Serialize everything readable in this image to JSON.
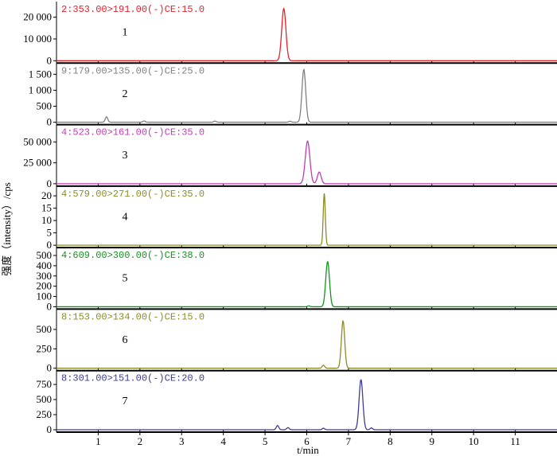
{
  "chart_data": {
    "type": "line",
    "xlabel": "t/min",
    "ylabel": "强度（intensity）/cps",
    "xlim": [
      0,
      12
    ],
    "x_ticks": [
      1,
      2,
      3,
      4,
      5,
      6,
      7,
      8,
      9,
      10,
      11
    ],
    "panels": [
      {
        "number": "1",
        "label": "2:353.00>191.00(-)CE:15.0",
        "color": "#e8202a",
        "ylim": [
          0,
          25000
        ],
        "y_ticks": [
          0,
          10000,
          20000
        ],
        "y_tick_labels": [
          "0",
          "10 000",
          "20 000"
        ],
        "peaks": [
          {
            "rt": 5.45,
            "height": 24000,
            "width": 0.05
          }
        ],
        "noise": []
      },
      {
        "number": "2",
        "label": "9:179.00>135.00(-)CE:25.0",
        "color": "#808080",
        "ylim": [
          0,
          1700
        ],
        "y_ticks": [
          0,
          500,
          1000,
          1500
        ],
        "y_tick_labels": [
          "0",
          "500",
          "1 000",
          "1 500"
        ],
        "peaks": [
          {
            "rt": 5.93,
            "height": 1650,
            "width": 0.045
          }
        ],
        "noise": [
          {
            "rt": 1.2,
            "height": 170
          },
          {
            "rt": 2.1,
            "height": 40
          },
          {
            "rt": 3.8,
            "height": 35
          },
          {
            "rt": 5.6,
            "height": 30
          }
        ]
      },
      {
        "number": "3",
        "label": "4:523.00>161.00(-)CE:35.0",
        "color": "#c03cb4",
        "ylim": [
          0,
          65000
        ],
        "y_ticks": [
          0,
          25000,
          50000
        ],
        "y_tick_labels": [
          "0",
          "25 000",
          "50 000"
        ],
        "peaks": [
          {
            "rt": 6.02,
            "height": 51000,
            "width": 0.055
          },
          {
            "rt": 6.3,
            "height": 14000,
            "width": 0.045
          }
        ],
        "noise": []
      },
      {
        "number": "4",
        "label": "4:579.00>271.00(-)CE:35.0",
        "color": "#8c8c28",
        "ylim": [
          0,
          22
        ],
        "y_ticks": [
          0,
          5,
          10,
          15,
          20
        ],
        "y_tick_labels": [
          "0",
          "5",
          "10",
          "15",
          "20"
        ],
        "peaks": [
          {
            "rt": 6.42,
            "height": 21,
            "width": 0.025
          }
        ],
        "noise": []
      },
      {
        "number": "5",
        "label": "4:609.00>300.00(-)CE:38.0",
        "color": "#12941e",
        "ylim": [
          0,
          530
        ],
        "y_ticks": [
          0,
          100,
          200,
          300,
          400,
          500
        ],
        "y_tick_labels": [
          "0",
          "100",
          "200",
          "300",
          "400",
          "500"
        ],
        "peaks": [
          {
            "rt": 6.5,
            "height": 440,
            "width": 0.045
          }
        ],
        "noise": [
          {
            "rt": 6.05,
            "height": 8
          }
        ]
      },
      {
        "number": "6",
        "label": "8:153.00>134.00(-)CE:15.0",
        "color": "#8c8c28",
        "ylim": [
          0,
          700
        ],
        "y_ticks": [
          0,
          250,
          500
        ],
        "y_tick_labels": [
          "0",
          "250",
          "500"
        ],
        "peaks": [
          {
            "rt": 6.87,
            "height": 610,
            "width": 0.04
          }
        ],
        "noise": [
          {
            "rt": 6.4,
            "height": 40
          }
        ]
      },
      {
        "number": "7",
        "label": "8:301.00>151.00(-)CE:20.0",
        "color": "#3c3c96",
        "ylim": [
          0,
          900
        ],
        "y_ticks": [
          0,
          250,
          500,
          750
        ],
        "y_tick_labels": [
          "0",
          "250",
          "500",
          "750"
        ],
        "peaks": [
          {
            "rt": 7.3,
            "height": 830,
            "width": 0.045
          }
        ],
        "noise": [
          {
            "rt": 5.3,
            "height": 70
          },
          {
            "rt": 5.55,
            "height": 35
          },
          {
            "rt": 6.4,
            "height": 25
          },
          {
            "rt": 7.55,
            "height": 30
          }
        ]
      }
    ]
  }
}
